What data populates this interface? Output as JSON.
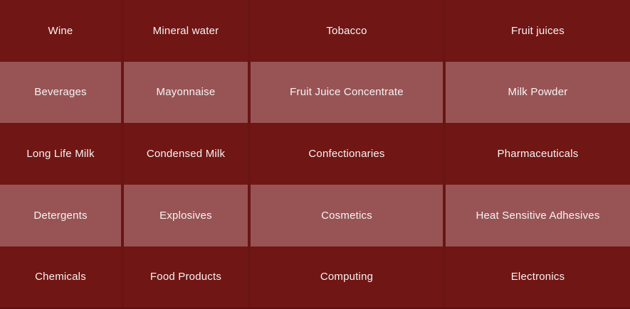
{
  "grid": {
    "columns": 4,
    "colors": {
      "dark_row_bg": "#701614",
      "light_row_bg": "#985455",
      "gutter": "#691514",
      "bottom_edge": "#5c0f0f",
      "text": "#f7f3f3"
    },
    "rows": [
      {
        "shade": "dark",
        "cells": [
          "Wine",
          "Mineral water",
          "Tobacco",
          "Fruit juices"
        ]
      },
      {
        "shade": "light",
        "cells": [
          "Beverages",
          "Mayonnaise",
          "Fruit Juice Concentrate",
          "Milk Powder"
        ]
      },
      {
        "shade": "dark",
        "cells": [
          "Long Life Milk",
          "Condensed Milk",
          "Confectionaries",
          "Pharmaceuticals"
        ]
      },
      {
        "shade": "light",
        "cells": [
          "Detergents",
          "Explosives",
          "Cosmetics",
          "Heat Sensitive Adhesives"
        ]
      },
      {
        "shade": "dark",
        "cells": [
          "Chemicals",
          "Food Products",
          "Computing",
          "Electronics"
        ]
      }
    ]
  }
}
